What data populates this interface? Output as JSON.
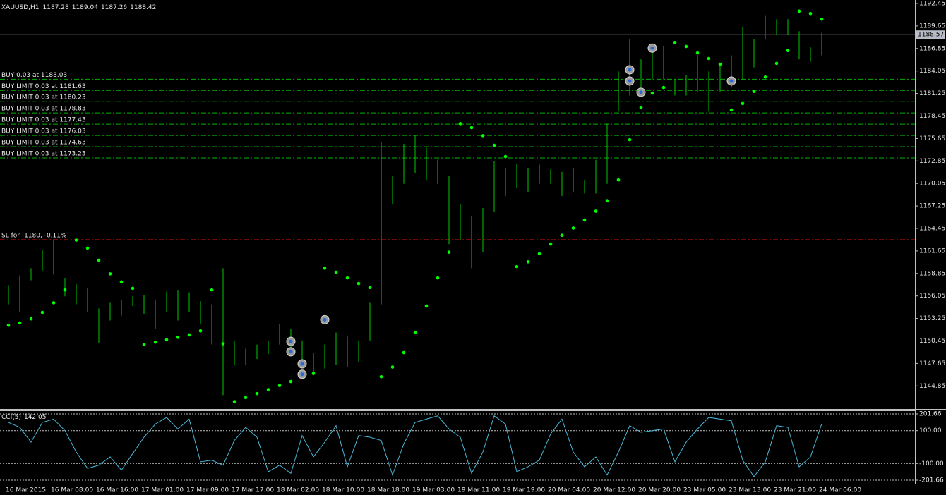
{
  "chart_data": [
    {
      "type": "ohlc",
      "title": "XAUUSD,H1",
      "header_values": [
        1187.28,
        1189.04,
        1187.26,
        1188.42
      ],
      "categories": [
        "16 Mar 2015",
        null,
        null,
        null,
        "16 Mar 08:00",
        null,
        null,
        null,
        "16 Mar 16:00",
        null,
        null,
        null,
        "17 Mar 01:00",
        null,
        null,
        null,
        "17 Mar 09:00",
        null,
        null,
        null,
        "17 Mar 17:00",
        null,
        null,
        null,
        "18 Mar 02:00",
        null,
        null,
        null,
        "18 Mar 10:00",
        null,
        null,
        null,
        "18 Mar 18:00",
        null,
        null,
        null,
        "19 Mar 03:00",
        null,
        null,
        null,
        "19 Mar 11:00",
        null,
        null,
        null,
        "19 Mar 19:00",
        null,
        null,
        null,
        "20 Mar 04:00",
        null,
        null,
        null,
        "20 Mar 12:00",
        null,
        null,
        null,
        "20 Mar 20:00",
        null,
        null,
        null,
        "23 Mar 05:00",
        null,
        null,
        null,
        "23 Mar 13:00",
        null,
        null,
        null,
        "23 Mar 21:00",
        null,
        null,
        null,
        "24 Mar 06:00"
      ],
      "high": [
        1157.4,
        1158.6,
        1159.5,
        1161.8,
        1163.0,
        1158.3,
        1157.5,
        1157.0,
        1154.5,
        1155.2,
        1155.5,
        1156.0,
        1156.2,
        1155.6,
        1156.6,
        1156.8,
        1156.5,
        1155.4,
        1155.0,
        1159.5,
        1150.5,
        1149.5,
        1150.0,
        1150.5,
        1152.6,
        1152.0,
        1150.5,
        1149.0,
        1150.0,
        1151.5,
        1151.0,
        1150.5,
        1155.2,
        1175.2,
        1171.0,
        1175.0,
        1176.0,
        1174.5,
        1173.0,
        1171.0,
        1167.5,
        1166.0,
        1167.0,
        1172.8,
        1172.0,
        1172.5,
        1172.0,
        1172.4,
        1171.8,
        1171.5,
        1172.0,
        1170.5,
        1173.0,
        1177.5,
        1184.0,
        1188.0,
        1185.5,
        1187.0,
        1187.2,
        1183.0,
        1183.5,
        1186.0,
        1184.0,
        1185.0,
        1186.0,
        1189.5,
        1188.0,
        1191.0,
        1190.5,
        1190.5,
        1189.0,
        1187.0,
        1188.8
      ],
      "low": [
        1155.0,
        1154.0,
        1158.0,
        1159.2,
        1158.7,
        1156.0,
        1155.0,
        1154.0,
        1150.2,
        1153.0,
        1153.6,
        1154.8,
        1153.8,
        1152.0,
        1154.0,
        1153.0,
        1154.0,
        1152.5,
        1150.0,
        1143.7,
        1147.4,
        1147.5,
        1148.2,
        1148.8,
        1150.0,
        1149.5,
        1148.0,
        1146.5,
        1147.0,
        1147.5,
        1147.2,
        1147.8,
        1150.5,
        1155.0,
        1167.5,
        1170.0,
        1171.3,
        1170.5,
        1170.0,
        1162.5,
        1163.0,
        1159.5,
        1161.5,
        1166.5,
        1168.5,
        1169.5,
        1169.0,
        1170.0,
        1170.0,
        1168.5,
        1169.0,
        1168.8,
        1168.8,
        1170.0,
        1179.0,
        1181.0,
        1182.0,
        1183.0,
        1183.0,
        1181.0,
        1181.0,
        1181.5,
        1179.0,
        1181.5,
        1182.0,
        1183.0,
        1184.5,
        1188.0,
        1188.5,
        1188.5,
        1185.5,
        1185.2,
        1186.0
      ],
      "color": "#00c800",
      "sar": [
        1152.4,
        1152.7,
        1153.2,
        1154.0,
        1155.2,
        1156.8,
        1163.0,
        1162.0,
        1160.5,
        1158.8,
        1157.8,
        1157.0,
        1150.0,
        1150.3,
        1150.6,
        1150.9,
        1151.2,
        1151.7,
        1156.8,
        1150.1,
        1142.9,
        1143.4,
        1143.9,
        1144.4,
        1144.9,
        1145.4,
        1145.9,
        1146.4,
        1159.5,
        1159.0,
        1158.3,
        1157.6,
        1157.1,
        1146.0,
        1147.2,
        1149.0,
        1151.5,
        1154.8,
        1158.3,
        1161.5,
        1177.5,
        1177.0,
        1176.0,
        1174.8,
        1173.4,
        1159.7,
        1160.3,
        1161.3,
        1162.5,
        1163.6,
        1164.5,
        1165.5,
        1166.6,
        1167.9,
        1170.5,
        1175.5,
        1179.5,
        1181.3,
        1182.0,
        1187.6,
        1187.1,
        1186.3,
        1185.6,
        1184.9,
        1179.2,
        1180.0,
        1181.5,
        1183.3,
        1185.0,
        1186.6,
        1191.5,
        1191.2,
        1190.5
      ],
      "sar_color": "#00ff00",
      "ylim": [
        1141.98,
        1192.89
      ],
      "yticks": [
        1192.45,
        1189.65,
        1186.85,
        1184.05,
        1181.25,
        1178.45,
        1175.65,
        1172.85,
        1170.05,
        1167.25,
        1164.45,
        1161.65,
        1158.85,
        1156.05,
        1153.25,
        1150.45,
        1147.65,
        1144.85
      ],
      "last_price": 1188.57,
      "orders": [
        {
          "label": "BUY 0.03 at 1183.03",
          "price": 1183.03
        },
        {
          "label": "BUY LIMIT 0.03 at 1181.63",
          "price": 1181.63
        },
        {
          "label": "BUY LIMIT 0.03 at 1180.23",
          "price": 1180.23
        },
        {
          "label": "BUY LIMIT 0.03 at 1178.83",
          "price": 1178.83
        },
        {
          "label": "BUY LIMIT 0.03 at 1177.43",
          "price": 1177.43
        },
        {
          "label": "BUY LIMIT 0.03 at 1176.03",
          "price": 1176.03
        },
        {
          "label": "BUY LIMIT 0.03 at 1174.63",
          "price": 1174.63
        },
        {
          "label": "BUY LIMIT 0.03 at 1173.23",
          "price": 1173.23
        }
      ],
      "order_color": "#00b000",
      "stop_loss": {
        "label": "SL for -1180, -0.11%",
        "price": 1163.05,
        "color": "#e01010"
      },
      "trades": [
        {
          "bar": 25,
          "price": 1150.4
        },
        {
          "bar": 25,
          "price": 1149.1
        },
        {
          "bar": 26,
          "price": 1147.6
        },
        {
          "bar": 26,
          "price": 1146.3
        },
        {
          "bar": 28,
          "price": 1153.1
        },
        {
          "bar": 55,
          "price": 1184.2
        },
        {
          "bar": 55,
          "price": 1182.8
        },
        {
          "bar": 56,
          "price": 1181.4
        },
        {
          "bar": 57,
          "price": 1186.9
        },
        {
          "bar": 64,
          "price": 1182.8
        }
      ]
    },
    {
      "type": "line",
      "title": "CCI(5)",
      "values": [
        150,
        120,
        30,
        150,
        170,
        100,
        -30,
        -130,
        -110,
        -60,
        -140,
        -40,
        60,
        140,
        180,
        110,
        170,
        -90,
        -80,
        -110,
        40,
        120,
        60,
        -150,
        -110,
        -160,
        70,
        -60,
        30,
        130,
        -120,
        70,
        60,
        40,
        -170,
        20,
        150,
        170,
        190,
        110,
        60,
        -160,
        -30,
        190,
        140,
        -150,
        -120,
        -80,
        80,
        170,
        -30,
        -120,
        -60,
        -170,
        -30,
        130,
        90,
        100,
        110,
        -90,
        30,
        110,
        180,
        170,
        160,
        -80,
        -180,
        -90,
        130,
        120,
        -120,
        -60,
        142.05
      ],
      "color": "#4ab8d8",
      "ylim": [
        -201.66,
        201.66
      ],
      "yticks": [
        201.66,
        {
          "value": 100,
          "label": "100.00"
        },
        {
          "value": -100,
          "label": "-100.00"
        },
        -201.66
      ]
    }
  ]
}
